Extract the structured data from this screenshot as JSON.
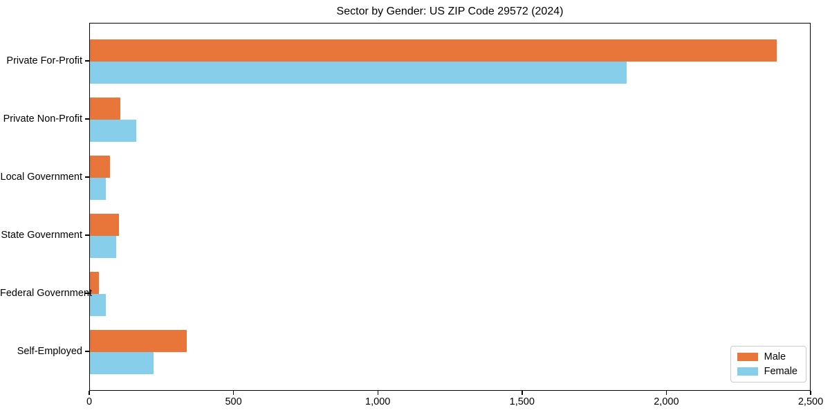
{
  "chart_data": {
    "type": "bar",
    "orientation": "horizontal",
    "title": "Sector by Gender: US ZIP Code 29572 (2024)",
    "categories": [
      "Private For-Profit",
      "Private Non-Profit",
      "Local Government",
      "State Government",
      "Federal Government",
      "Self-Employed"
    ],
    "series": [
      {
        "name": "Male",
        "color": "#e8763a",
        "values": [
          2380,
          105,
          70,
          100,
          30,
          335
        ]
      },
      {
        "name": "Female",
        "color": "#87ceeb",
        "values": [
          1860,
          160,
          55,
          90,
          55,
          220
        ]
      }
    ],
    "xlim": [
      0,
      2500
    ],
    "x_ticks": [
      0,
      500,
      1000,
      1500,
      2000,
      2500
    ],
    "x_tick_labels": [
      "0",
      "500",
      "1,000",
      "1,500",
      "2,000",
      "2,500"
    ],
    "xlabel": "",
    "ylabel": "",
    "grid": false,
    "legend": {
      "position": "lower right",
      "entries": [
        "Male",
        "Female"
      ]
    },
    "colors": {
      "male": "#e8763a",
      "female": "#87ceeb",
      "axis": "#000000",
      "background": "#ffffff",
      "legend_border": "#cccccc"
    }
  }
}
